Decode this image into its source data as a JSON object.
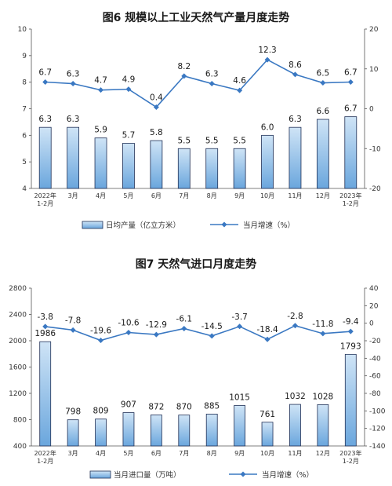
{
  "colors": {
    "bar_fill_top": "#cfe4f6",
    "bar_fill_bottom": "#6aa6dd",
    "bar_stroke": "#1f2f55",
    "line": "#3a78c2",
    "axis": "#555555"
  },
  "chart_data": [
    {
      "type": "bar",
      "title": "图6  规模以上工业天然气产量月度走势",
      "categories": [
        "2022年\n1-2月",
        "3月",
        "4月",
        "5月",
        "6月",
        "7月",
        "8月",
        "9月",
        "10月",
        "11月",
        "12月",
        "2023年\n1-2月"
      ],
      "y_left": {
        "range": [
          4,
          10
        ],
        "ticks": [
          "4",
          "5",
          "6",
          "7",
          "8",
          "9",
          "10"
        ]
      },
      "y_right": {
        "range": [
          -20,
          20
        ],
        "ticks": [
          "-20",
          "-10",
          "0",
          "10",
          "20"
        ]
      },
      "series": [
        {
          "name": "日均产量（亿立方米）",
          "kind": "bar",
          "axis": "left",
          "values": [
            6.3,
            6.3,
            5.9,
            5.7,
            5.8,
            5.5,
            5.5,
            5.5,
            6.0,
            6.3,
            6.6,
            6.7
          ],
          "labels": [
            "6.3",
            "6.3",
            "5.9",
            "5.7",
            "5.8",
            "5.5",
            "5.5",
            "5.5",
            "6.0",
            "6.3",
            "6.6",
            "6.7"
          ]
        },
        {
          "name": "当月增速（%）",
          "kind": "line",
          "axis": "right",
          "values": [
            6.7,
            6.3,
            4.7,
            4.9,
            0.4,
            8.2,
            6.3,
            4.6,
            12.3,
            8.6,
            6.5,
            6.7
          ],
          "labels": [
            "6.7",
            "6.3",
            "4.7",
            "4.9",
            "0.4",
            "8.2",
            "6.3",
            "4.6",
            "12.3",
            "8.6",
            "6.5",
            "6.7"
          ]
        }
      ],
      "legend_position": "bottom",
      "grid": false
    },
    {
      "type": "bar",
      "title": "图7  天然气进口月度走势",
      "categories": [
        "2022年\n1-2月",
        "3月",
        "4月",
        "5月",
        "6月",
        "7月",
        "8月",
        "9月",
        "10月",
        "11月",
        "12月",
        "2023年\n1-2月"
      ],
      "y_left": {
        "range": [
          400,
          2800
        ],
        "ticks": [
          "400",
          "800",
          "1200",
          "1600",
          "2000",
          "2400",
          "2800"
        ]
      },
      "y_right": {
        "range": [
          -140,
          40
        ],
        "ticks": [
          "-140",
          "-120",
          "-100",
          "-80",
          "-60",
          "-40",
          "-20",
          "0",
          "20",
          "40"
        ]
      },
      "series": [
        {
          "name": "当月进口量（万吨）",
          "kind": "bar",
          "axis": "left",
          "values": [
            1986,
            798,
            809,
            907,
            872,
            870,
            885,
            1015,
            761,
            1032,
            1028,
            1793
          ],
          "labels": [
            "1986",
            "798",
            "809",
            "907",
            "872",
            "870",
            "885",
            "1015",
            "761",
            "1032",
            "1028",
            "1793"
          ]
        },
        {
          "name": "当月增速（%）",
          "kind": "line",
          "axis": "right",
          "values": [
            -3.8,
            -7.8,
            -19.6,
            -10.6,
            -12.9,
            -6.1,
            -14.5,
            -3.7,
            -18.4,
            -2.8,
            -11.8,
            -9.4
          ],
          "labels": [
            "-3.8",
            "-7.8",
            "-19.6",
            "-10.6",
            "-12.9",
            "-6.1",
            "-14.5",
            "-3.7",
            "-18.4",
            "-2.8",
            "-11.8",
            "-9.4"
          ]
        }
      ],
      "legend_position": "bottom",
      "grid": false
    }
  ]
}
